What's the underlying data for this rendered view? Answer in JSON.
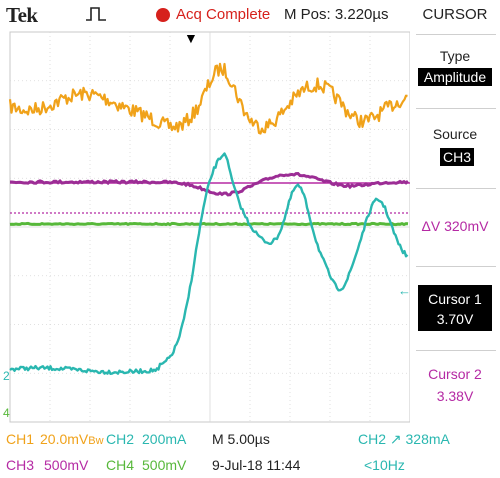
{
  "header": {
    "brand": "Tek",
    "acq_status": "Acq Complete",
    "m_pos": "M Pos: 3.220µs",
    "trigger_icon": "rising-edge-pulse-icon",
    "acq_indicator_color": "#d6211c"
  },
  "screen": {
    "ch1_marker": "←",
    "ch2_marker": "2",
    "ch4_marker": "4",
    "trig_level_marker": "←"
  },
  "side_menu": {
    "title": "CURSOR",
    "type_label": "Type",
    "type_value": "Amplitude",
    "source_label": "Source",
    "source_value": "CH3",
    "delta_v": "ΔV 320mV",
    "cursor1_label": "Cursor 1",
    "cursor1_value": "3.70V",
    "cursor2_label": "Cursor 2",
    "cursor2_value": "3.38V"
  },
  "status": {
    "ch1": "CH1",
    "ch1_scale": "20.0mV",
    "ch1_bw": "B",
    "ch1_coupling": "w",
    "ch2": "CH2",
    "ch2_scale": "200mA",
    "ch3": "CH3",
    "ch3_scale": "500mV",
    "ch4": "CH4",
    "ch4_scale": "500mV",
    "timebase": "M 5.00µs",
    "date_time": "9-Jul-18 11:44",
    "trigger": "CH2 ↗ 328mA",
    "trigger_freq": "<10Hz"
  },
  "colors": {
    "ch1": "#f0a21a",
    "ch2": "#2ab7b0",
    "ch3": "#b52aa4",
    "ch4": "#57b83a"
  }
}
